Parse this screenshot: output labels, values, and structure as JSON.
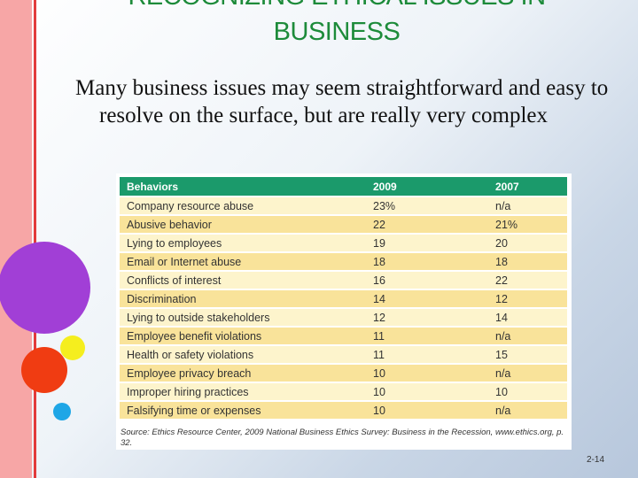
{
  "header": {
    "title_line1": "RECOGNIZING ETHICAL ISSUES IN",
    "title_line2": "BUSINESS"
  },
  "body": "Many business issues may seem straightforward and easy to resolve on the surface, but are really very complex",
  "table": {
    "columns": [
      "Behaviors",
      "2009",
      "2007"
    ],
    "rows": [
      [
        "Company resource abuse",
        "23%",
        "n/a"
      ],
      [
        "Abusive behavior",
        "22",
        "21%"
      ],
      [
        "Lying to employees",
        "19",
        "20"
      ],
      [
        "Email or Internet abuse",
        "18",
        "18"
      ],
      [
        "Conflicts of interest",
        "16",
        "22"
      ],
      [
        "Discrimination",
        "14",
        "12"
      ],
      [
        "Lying to outside stakeholders",
        "12",
        "14"
      ],
      [
        "Employee benefit violations",
        "11",
        "n/a"
      ],
      [
        "Health or safety violations",
        "11",
        "15"
      ],
      [
        "Employee privacy breach",
        "10",
        "n/a"
      ],
      [
        "Improper hiring practices",
        "10",
        "10"
      ],
      [
        "Falsifying time or expenses",
        "10",
        "n/a"
      ]
    ],
    "source": "Source: Ethics Resource Center, 2009 National Business Ethics Survey: Business in the Recession, www.ethics.org, p. 32."
  },
  "page_number": "2-14"
}
